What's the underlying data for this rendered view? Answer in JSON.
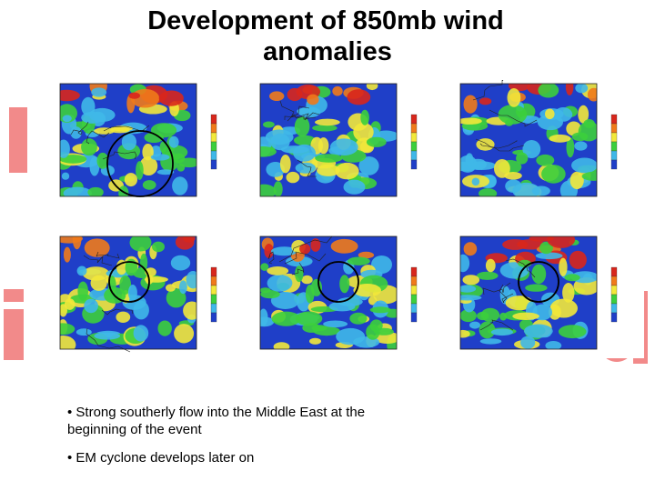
{
  "slide": {
    "title_line1": "Development of 850mb wind",
    "title_line2": "anomalies",
    "bullets": [
      "• Strong southerly flow into the Middle East at the beginning of the event",
      "• EM cyclone develops later on"
    ]
  },
  "panels": [
    {
      "row": 1,
      "col": 1,
      "circled": true
    },
    {
      "row": 1,
      "col": 2,
      "circled": false
    },
    {
      "row": 1,
      "col": 3,
      "circled": false
    },
    {
      "row": 2,
      "col": 1,
      "circled": true
    },
    {
      "row": 2,
      "col": 2,
      "circled": true
    },
    {
      "row": 2,
      "col": 3,
      "circled": true
    }
  ],
  "colors": {
    "background_glyphs": "#f28a8a",
    "map_blue": "#1f3fc8",
    "map_cyan": "#3fb8e8",
    "map_green": "#3ccf3c",
    "map_yellow": "#f2e83a",
    "map_orange": "#f07a1a",
    "map_red": "#d8261c"
  }
}
